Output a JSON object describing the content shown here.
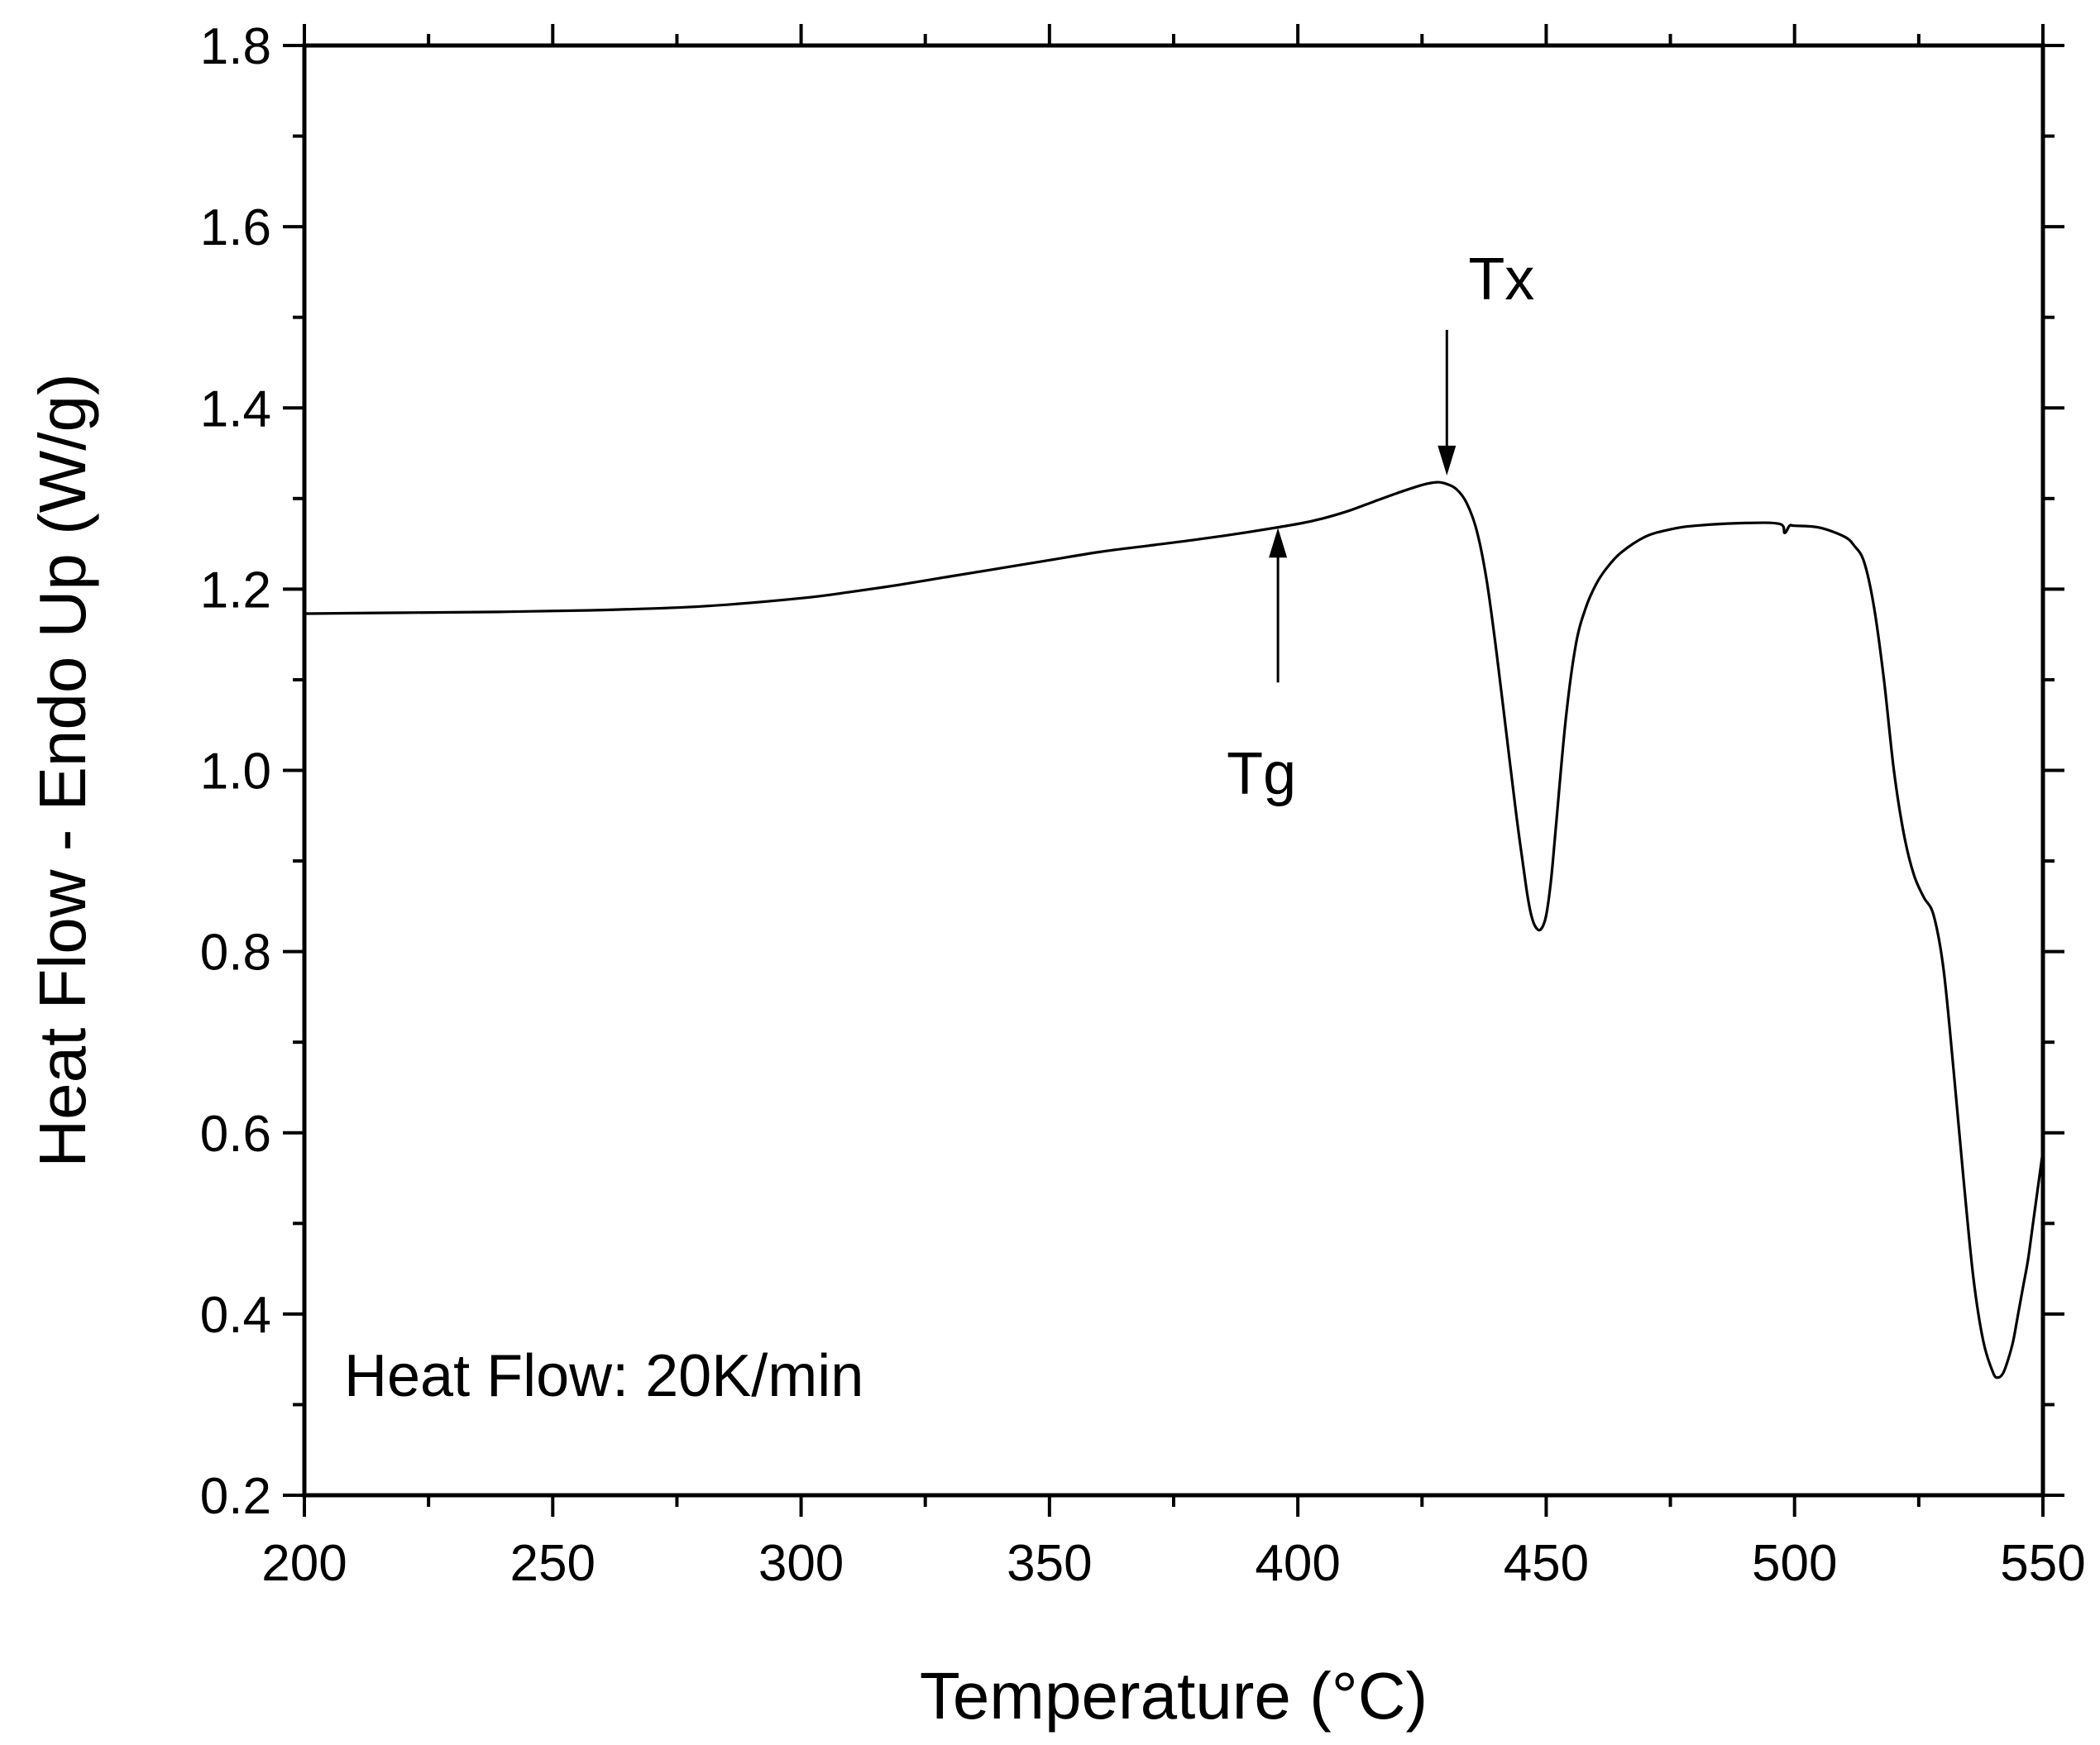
{
  "chart_data": {
    "type": "line",
    "title": "",
    "xlabel": "Temperature (°C)",
    "ylabel": "Heat Flow - Endo Up (W/g)",
    "xlim": [
      200,
      550
    ],
    "ylim": [
      0.2,
      1.8
    ],
    "xticks": [
      200,
      250,
      300,
      350,
      400,
      450,
      500,
      550
    ],
    "xtick_labels": [
      "200",
      "250",
      "300",
      "350",
      "400",
      "450",
      "500",
      "550"
    ],
    "yticks": [
      0.2,
      0.4,
      0.6,
      0.8,
      1.0,
      1.2,
      1.4,
      1.6,
      1.8
    ],
    "ytick_labels": [
      "0.2",
      "0.4",
      "0.6",
      "0.8",
      "1.0",
      "1.2",
      "1.4",
      "1.6",
      "1.8"
    ],
    "x_minor_step": 25,
    "y_minor_step": 0.1,
    "grid": false,
    "annotation_text": "Heat Flow: 20K/min",
    "series": [
      {
        "name": "Heat Flow 20K/min",
        "color": "#000000",
        "x": [
          200,
          220,
          240,
          260,
          280,
          300,
          310,
          320,
          330,
          340,
          350,
          360,
          370,
          380,
          390,
          400,
          405,
          410,
          415,
          420,
          425,
          428,
          430,
          432,
          434,
          436,
          438,
          440,
          442,
          444,
          446,
          447,
          448,
          449,
          450,
          451,
          452,
          454,
          456,
          458,
          460,
          462,
          465,
          470,
          475,
          480,
          490,
          497,
          498,
          499,
          500,
          505,
          510,
          512,
          514,
          516,
          518,
          520,
          522,
          524,
          526,
          528,
          530,
          532,
          534,
          536,
          538,
          540,
          541,
          542,
          543,
          544,
          545,
          546,
          547,
          548,
          549,
          550
        ],
        "y": [
          1.173,
          1.174,
          1.175,
          1.177,
          1.181,
          1.19,
          1.197,
          1.205,
          1.214,
          1.223,
          1.232,
          1.241,
          1.248,
          1.255,
          1.263,
          1.272,
          1.278,
          1.286,
          1.296,
          1.306,
          1.315,
          1.318,
          1.316,
          1.31,
          1.295,
          1.265,
          1.21,
          1.13,
          1.04,
          0.95,
          0.87,
          0.84,
          0.826,
          0.825,
          0.84,
          0.88,
          0.94,
          1.06,
          1.14,
          1.18,
          1.205,
          1.222,
          1.24,
          1.258,
          1.266,
          1.27,
          1.273,
          1.272,
          1.262,
          1.27,
          1.27,
          1.268,
          1.258,
          1.248,
          1.23,
          1.18,
          1.1,
          1.0,
          0.93,
          0.885,
          0.86,
          0.84,
          0.78,
          0.67,
          0.55,
          0.44,
          0.37,
          0.335,
          0.33,
          0.335,
          0.35,
          0.37,
          0.4,
          0.43,
          0.46,
          0.5,
          0.54,
          0.58
        ]
      }
    ],
    "annotations": [
      {
        "label": "Tg",
        "x": 396,
        "y": 1.275,
        "arrow": "up"
      },
      {
        "label": "Tx",
        "x": 430,
        "y": 1.32,
        "arrow": "down"
      }
    ]
  }
}
